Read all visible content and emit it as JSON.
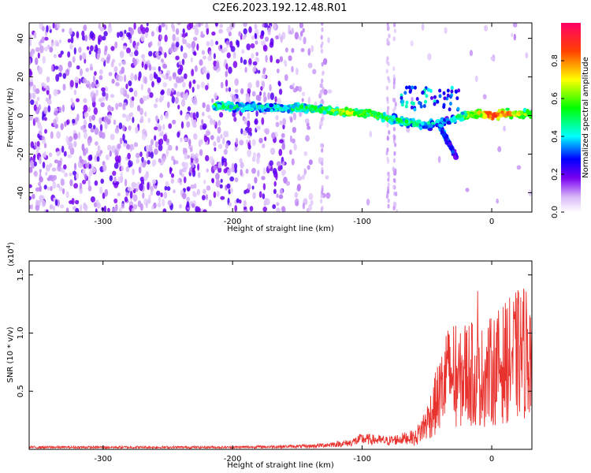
{
  "figure_title": "C2E6.2023.192.12.48.R01",
  "chart_data": [
    {
      "type": "heatmap",
      "title": "",
      "xlabel": "Height of straight line (km)",
      "ylabel": "Frequency (Hz)",
      "xlim": [
        -357,
        31
      ],
      "ylim": [
        -50,
        48
      ],
      "xticks": [
        -300,
        -200,
        -100,
        0
      ],
      "xtick_labels": [
        "-300",
        "-200",
        "-100",
        "0"
      ],
      "yticks": [
        -40,
        -20,
        0,
        20,
        40
      ],
      "ytick_labels": [
        "-40",
        "-20",
        "0",
        "20",
        "40"
      ],
      "colorbar": {
        "label": "Normalized spectral amplitude",
        "range": [
          0,
          1
        ],
        "ticks": [
          0.0,
          0.2,
          0.4,
          0.6,
          0.8
        ],
        "tick_labels": [
          "0.0",
          "0.2",
          "0.4",
          "0.6",
          "0.8"
        ]
      },
      "signal_track": {
        "x": [
          -210,
          -190,
          -170,
          -150,
          -130,
          -110,
          -90,
          -70,
          -50,
          -35,
          -20,
          -10,
          0,
          10,
          31
        ],
        "y": [
          5,
          4.5,
          4,
          4,
          3,
          1.5,
          0.5,
          -3,
          -5,
          -3,
          0,
          1.5,
          0,
          1,
          1
        ],
        "amplitude": [
          0.5,
          0.45,
          0.45,
          0.5,
          0.55,
          0.65,
          0.6,
          0.5,
          0.45,
          0.4,
          0.6,
          0.7,
          0.9,
          0.8,
          0.6
        ]
      },
      "branch": {
        "x": [
          -40,
          -35,
          -30,
          -27
        ],
        "y": [
          -6,
          -12,
          -18,
          -22
        ],
        "amplitude": [
          0.35,
          0.3,
          0.25,
          0.2
        ]
      }
    },
    {
      "type": "line",
      "title": "",
      "xlabel": "Height of straight line (km)",
      "ylabel": "SNR (10 * v/v)",
      "scale_label_base": "(x10",
      "scale_label_exp": "4",
      "scale_label_close": ")",
      "xlim": [
        -357,
        31
      ],
      "ylim": [
        0,
        1.62
      ],
      "xticks": [
        -300,
        -200,
        -100,
        0
      ],
      "xtick_labels": [
        "-300",
        "-200",
        "-100",
        "0"
      ],
      "yticks": [
        0.5,
        1.0,
        1.5
      ],
      "ytick_labels": [
        "0.5",
        "1.0",
        "1.5"
      ],
      "color": "#e8322e",
      "envelope": {
        "x": [
          -357,
          -200,
          -140,
          -110,
          -100,
          -80,
          -60,
          -50,
          -40,
          -35,
          -30,
          -25,
          -20,
          -15,
          -10,
          0,
          10,
          20,
          31
        ],
        "y": [
          0.02,
          0.02,
          0.03,
          0.06,
          0.1,
          0.08,
          0.12,
          0.35,
          0.7,
          0.9,
          1.0,
          0.85,
          1.0,
          0.95,
          0.9,
          1.0,
          1.1,
          1.2,
          1.3
        ]
      }
    }
  ]
}
